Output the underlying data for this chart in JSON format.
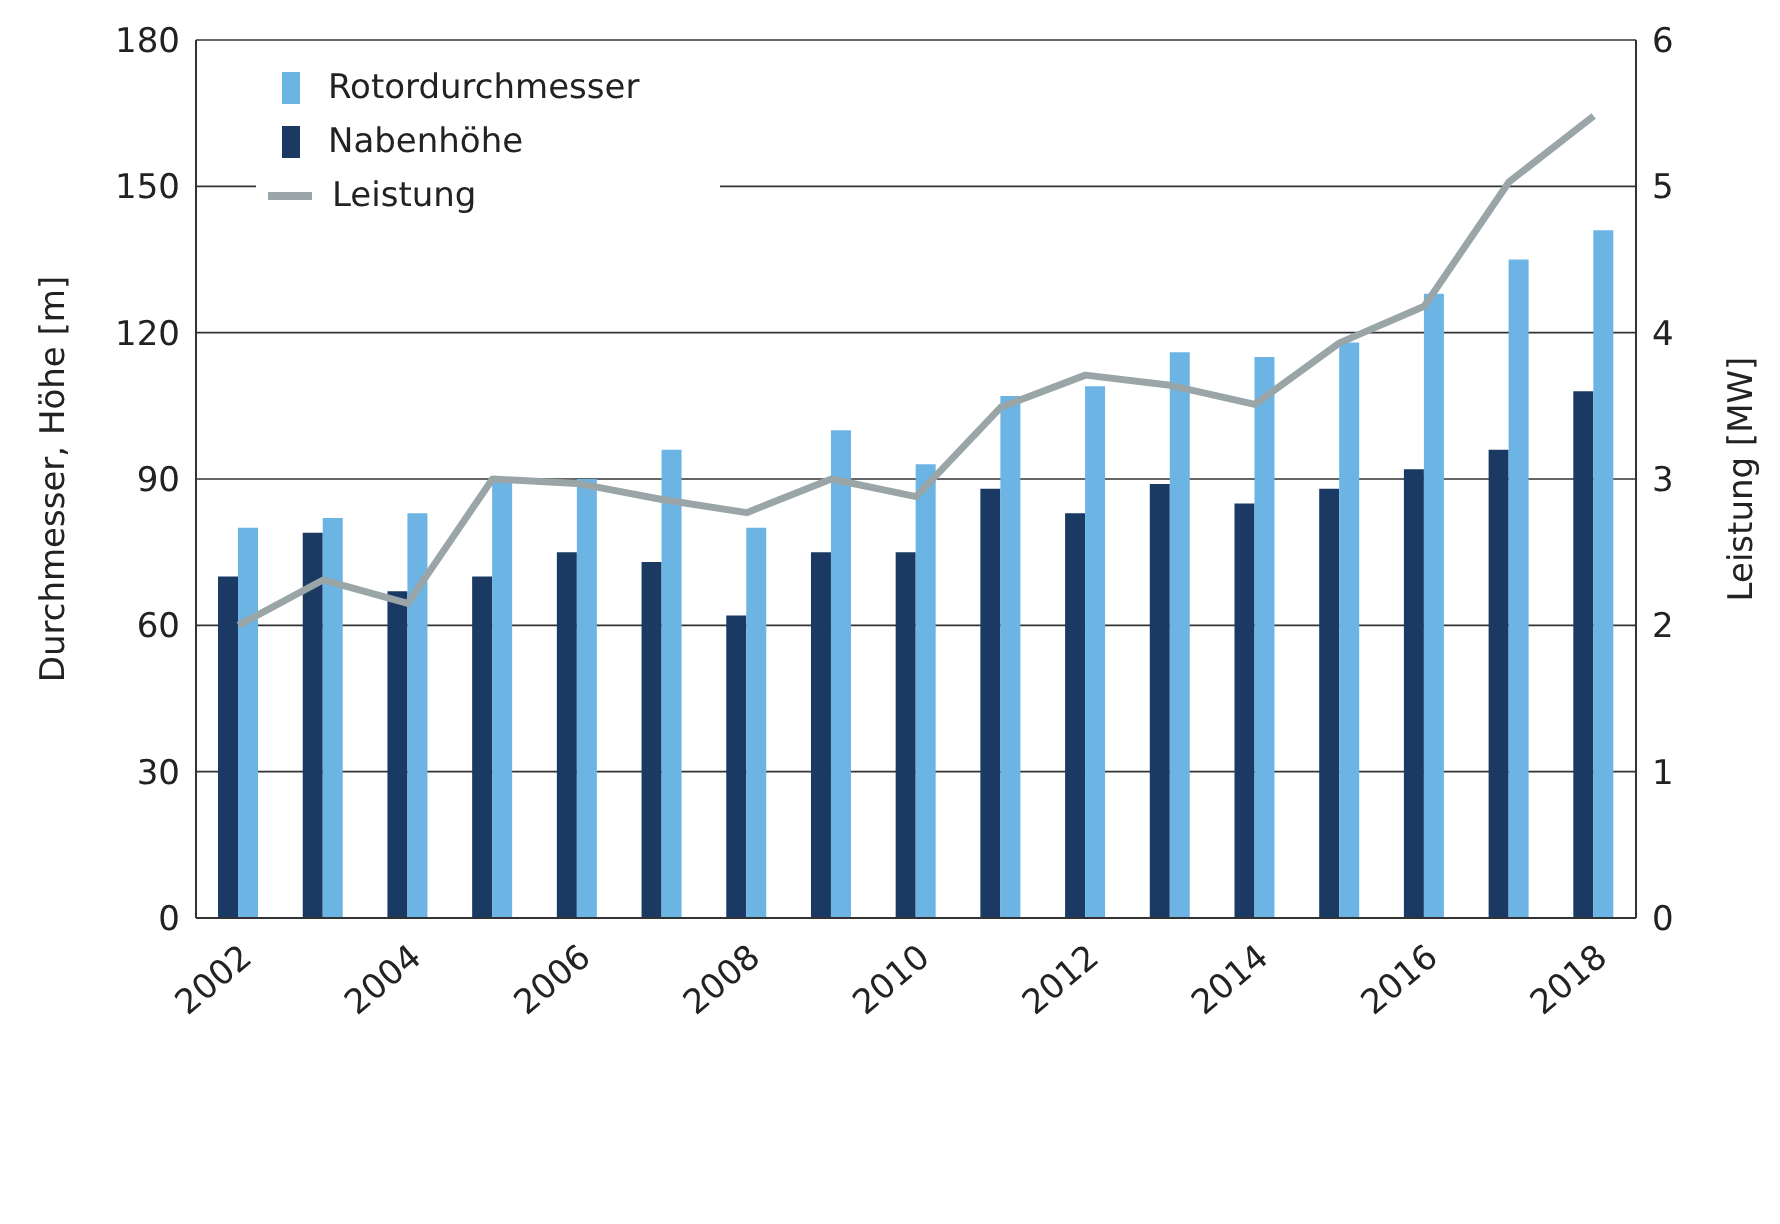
{
  "chart_data": {
    "type": "bar",
    "ylabel": "Durchmesser, Höhe [m]",
    "y2label": "Leistung [MW]",
    "categories": [
      "2002",
      null,
      "2004",
      null,
      "2006",
      null,
      "2008",
      null,
      "2010",
      null,
      "2012",
      null,
      "2014",
      null,
      "2016",
      null,
      "2018"
    ],
    "series": [
      {
        "name": "Rotordurchmesser",
        "color": "#6cb4e4",
        "values": [
          80,
          82,
          83,
          90,
          90,
          96,
          80,
          100,
          93,
          107,
          109,
          116,
          115,
          118,
          128,
          135,
          141
        ]
      },
      {
        "name": "Nabenhöhe",
        "color": "#1a3a63",
        "values": [
          70,
          79,
          67,
          70,
          75,
          73,
          62,
          75,
          75,
          88,
          83,
          89,
          85,
          88,
          92,
          96,
          108
        ]
      },
      {
        "name": "Leistung",
        "type": "line",
        "axis": "y2",
        "color": "#9aa5a8",
        "values": [
          2.0,
          2.31,
          2.15,
          3.0,
          2.97,
          2.86,
          2.77,
          3.0,
          2.88,
          3.49,
          3.71,
          3.64,
          3.51,
          3.93,
          4.18,
          5.03,
          5.48
        ]
      }
    ],
    "ylim": [
      0,
      180
    ],
    "yticks": [
      0,
      30,
      60,
      90,
      120,
      150,
      180
    ],
    "y2lim": [
      0,
      6
    ],
    "y2ticks": [
      0,
      1,
      2,
      3,
      4,
      5,
      6
    ],
    "grid": "y",
    "legend": "top left",
    "marker": "none",
    "line_style": "solid"
  }
}
